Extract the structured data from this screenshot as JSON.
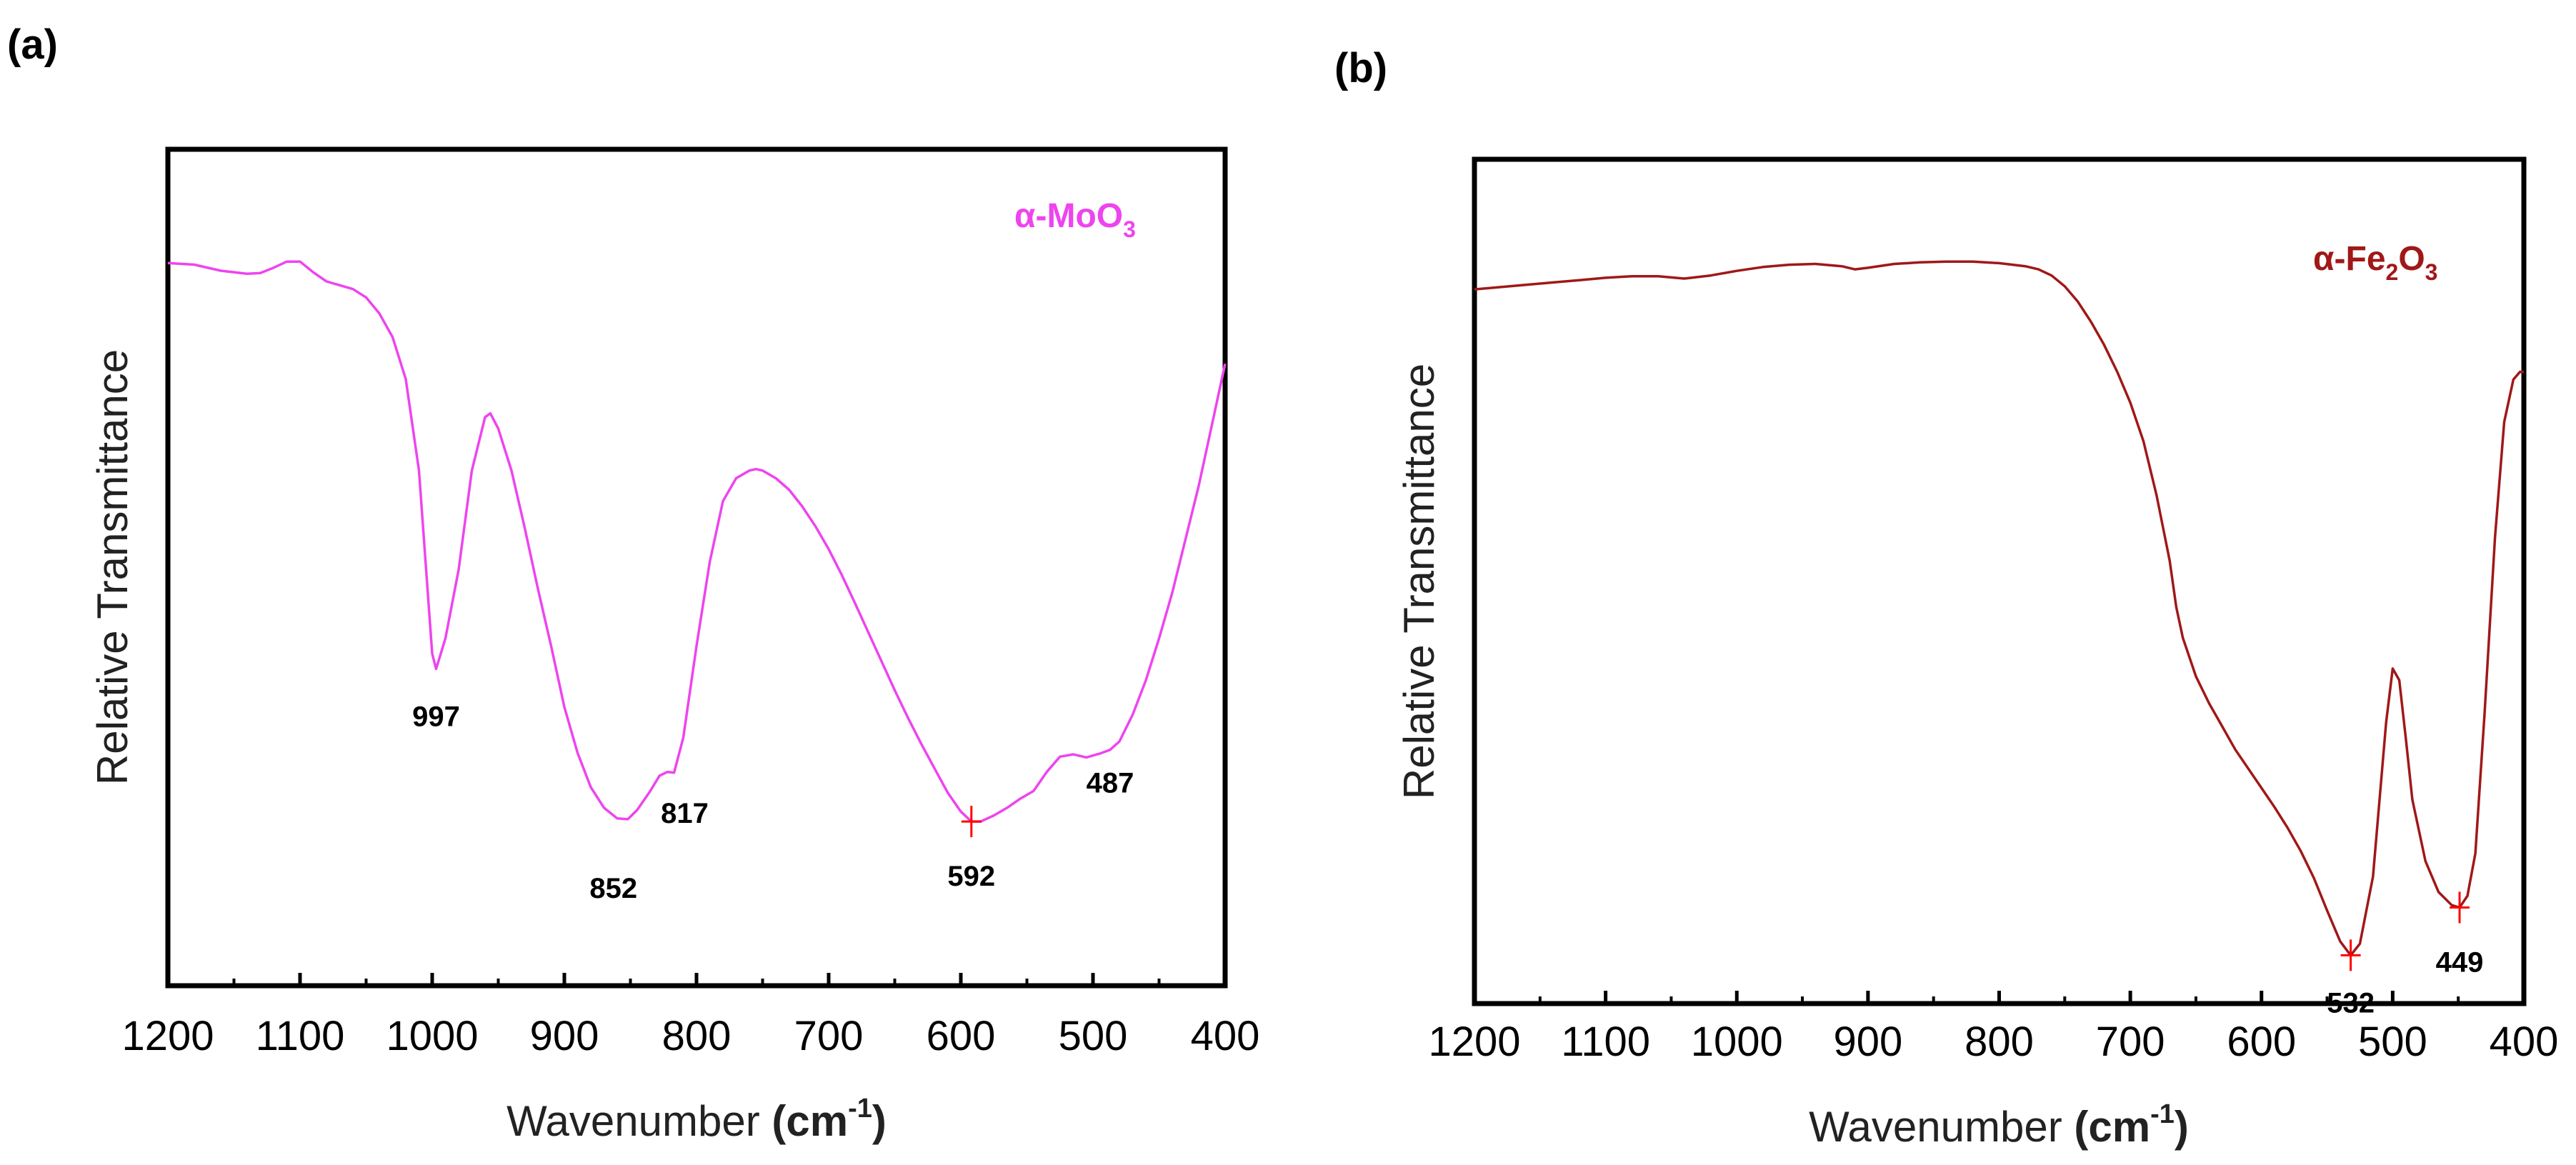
{
  "chart_data": [
    {
      "type": "line",
      "panel_label": "(a)",
      "series_label": {
        "prefix": "α-MoO",
        "sub": "3"
      },
      "color": "#ee44ee",
      "marker_color": "#ff0000",
      "xlabel": {
        "text": "Wavenumber ",
        "unit": "(cm",
        "sup": "-1",
        "close": ")"
      },
      "ylabel": "Relative Transmittance",
      "xlim": [
        1200,
        400
      ],
      "ylim": [
        0,
        100
      ],
      "x_reversed": true,
      "xticks": [
        1200,
        1100,
        1000,
        900,
        800,
        700,
        600,
        500,
        400
      ],
      "y_tick_labels": false,
      "grid": false,
      "x": [
        1200,
        1180,
        1160,
        1140,
        1130,
        1120,
        1110,
        1100,
        1090,
        1080,
        1070,
        1060,
        1050,
        1040,
        1030,
        1020,
        1010,
        1000,
        997,
        990,
        980,
        970,
        960,
        956,
        950,
        940,
        930,
        920,
        910,
        900,
        890,
        880,
        870,
        860,
        852,
        845,
        835,
        828,
        822,
        817,
        810,
        800,
        790,
        780,
        770,
        760,
        755,
        750,
        740,
        730,
        720,
        710,
        700,
        690,
        680,
        670,
        660,
        650,
        640,
        630,
        620,
        610,
        600,
        592,
        585,
        575,
        565,
        555,
        545,
        535,
        525,
        515,
        505,
        495,
        487,
        480,
        470,
        460,
        450,
        440,
        430,
        420,
        410,
        400
      ],
      "y": [
        89.2,
        89.0,
        88.2,
        87.8,
        87.9,
        88.6,
        89.4,
        89.4,
        88.0,
        86.8,
        86.3,
        85.8,
        84.7,
        82.6,
        79.5,
        74.0,
        62.0,
        38.0,
        36.0,
        40.0,
        49.0,
        62.0,
        69.0,
        69.5,
        67.5,
        62.0,
        54.5,
        46.5,
        39.0,
        31.0,
        25.0,
        20.5,
        17.8,
        16.4,
        16.3,
        17.5,
        20.0,
        22.0,
        22.5,
        22.4,
        27.0,
        39.0,
        50.0,
        58.0,
        61.0,
        62.0,
        62.2,
        62.0,
        61.0,
        59.5,
        57.3,
        54.7,
        51.7,
        48.3,
        44.6,
        40.8,
        37.0,
        33.2,
        29.6,
        26.2,
        23.0,
        19.8,
        17.3,
        16.0,
        16.0,
        16.8,
        17.8,
        19.0,
        20.0,
        22.5,
        24.5,
        24.8,
        24.4,
        24.9,
        25.4,
        26.5,
        30.0,
        34.5,
        40.0,
        46.0,
        53.0,
        60.0,
        68.0,
        76.0
      ],
      "annotations": [
        {
          "text": "997",
          "x": 997,
          "y": 36.0,
          "marker": false
        },
        {
          "text": "852",
          "x": 852,
          "y": 16.3,
          "marker": false
        },
        {
          "text": "817",
          "x": 817,
          "y": 22.4,
          "marker": false
        },
        {
          "text": "592",
          "x": 592,
          "y": 16.0,
          "marker": true
        },
        {
          "text": "487",
          "x": 487,
          "y": 25.4,
          "marker": false
        }
      ]
    },
    {
      "type": "line",
      "panel_label": "(b)",
      "series_label": {
        "prefix": "α-Fe",
        "sub": "2",
        "mid": "O",
        "sub2": "3"
      },
      "color": "#a01818",
      "marker_color": "#ff0000",
      "xlabel": {
        "text": "Wavenumber ",
        "unit": "(cm",
        "sup": "-1",
        "close": ")"
      },
      "ylabel": "Relative Transmittance",
      "xlim": [
        1200,
        400
      ],
      "ylim": [
        0,
        100
      ],
      "x_reversed": true,
      "xticks": [
        1200,
        1100,
        1000,
        900,
        800,
        700,
        600,
        500,
        400
      ],
      "y_tick_labels": false,
      "grid": false,
      "x": [
        1200,
        1180,
        1160,
        1140,
        1120,
        1100,
        1080,
        1060,
        1040,
        1020,
        1000,
        980,
        960,
        940,
        920,
        910,
        900,
        880,
        860,
        840,
        820,
        800,
        780,
        770,
        760,
        750,
        740,
        730,
        720,
        710,
        700,
        690,
        680,
        670,
        665,
        660,
        650,
        640,
        630,
        620,
        610,
        600,
        590,
        580,
        570,
        560,
        550,
        540,
        532,
        525,
        515,
        505,
        500,
        495,
        490,
        485,
        475,
        465,
        455,
        449,
        443,
        437,
        430,
        422,
        415,
        408,
        403,
        400
      ],
      "y": [
        87.2,
        87.5,
        87.8,
        88.1,
        88.4,
        88.7,
        88.9,
        88.9,
        88.6,
        89.0,
        89.6,
        90.1,
        90.4,
        90.5,
        90.2,
        89.8,
        90.0,
        90.5,
        90.7,
        90.8,
        90.8,
        90.6,
        90.2,
        89.8,
        89.0,
        87.6,
        85.6,
        83.0,
        80.0,
        76.5,
        72.5,
        67.5,
        60.5,
        52.0,
        46.0,
        42.0,
        37.0,
        33.5,
        30.5,
        27.5,
        25.0,
        22.5,
        20.0,
        17.3,
        14.3,
        10.8,
        6.6,
        2.6,
        0.8,
        2.3,
        11.0,
        31.0,
        38.0,
        36.5,
        29.0,
        21.0,
        13.0,
        9.0,
        7.3,
        7.0,
        8.5,
        14.0,
        32.0,
        55.0,
        70.0,
        75.5,
        76.5,
        76.5
      ],
      "annotations": [
        {
          "text": "532",
          "x": 532,
          "y": 0.8,
          "marker": true
        },
        {
          "text": "449",
          "x": 449,
          "y": 7.0,
          "marker": true
        }
      ]
    }
  ]
}
